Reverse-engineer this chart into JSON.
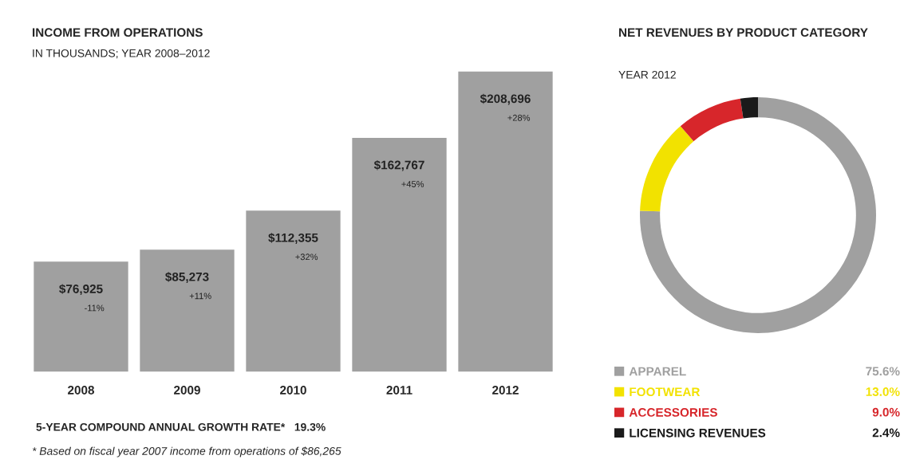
{
  "chart_data": [
    {
      "type": "bar",
      "title": "INCOME FROM OPERATIONS",
      "subtitle": "IN THOUSANDS; YEAR 2008–2012",
      "categories": [
        "2008",
        "2009",
        "2010",
        "2011",
        "2012"
      ],
      "values": [
        76925,
        85273,
        112355,
        162767,
        208696
      ],
      "color": "#a0a0a0",
      "value_labels": [
        "$76,925",
        "$85,273",
        "$112,355",
        "$162,767",
        "$208,696"
      ],
      "annotations": [
        "-11%",
        "+11%",
        "+32%",
        "+45%",
        "+28%",
        "5-YEAR COMPOUND ANNUAL GROWTH RATE*   19.3%",
        "* Based on fiscal year 2007 income from operations of $86,265"
      ]
    },
    {
      "type": "donut",
      "title": "NET REVENUES BY PRODUCT CATEGORY",
      "subtitle": "YEAR 2012",
      "categories": [
        "APPAREL",
        "FOOTWEAR",
        "ACCESSORIES",
        "LICENSING REVENUES"
      ],
      "values": [
        75.6,
        13.0,
        9.0,
        2.4
      ],
      "colors": [
        "#a0a0a0",
        "#f2e200",
        "#d7262b",
        "#1a1a1a"
      ],
      "value_labels": [
        "75.6%",
        "13.0%",
        "9.0%",
        "2.4%"
      ],
      "legend": "bottom"
    }
  ]
}
